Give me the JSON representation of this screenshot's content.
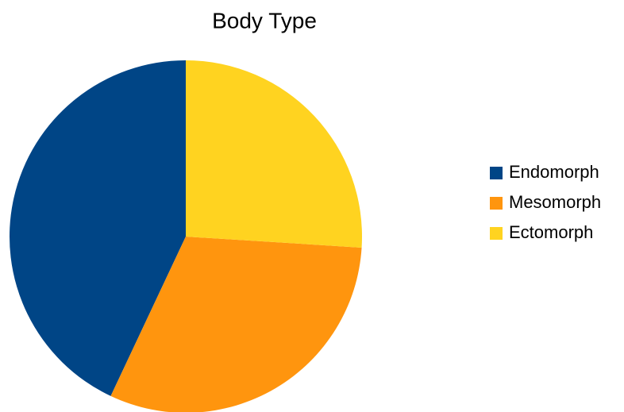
{
  "chart_data": {
    "type": "pie",
    "title": "Body Type",
    "categories": [
      "Endomorph",
      "Mesomorph",
      "Ectomorph"
    ],
    "values": [
      43,
      31,
      26
    ],
    "colors": [
      "#004586",
      "#ff950e",
      "#ffd320"
    ],
    "legend": "right"
  }
}
